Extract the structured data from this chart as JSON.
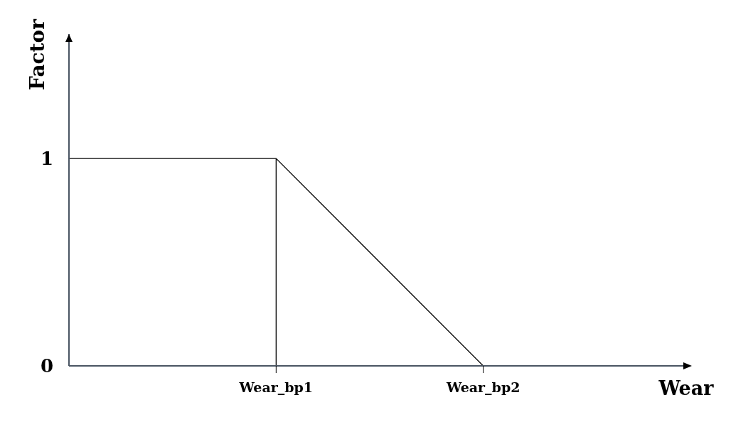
{
  "chart_data": {
    "type": "line",
    "xlabel": "Wear",
    "ylabel": "Factor",
    "categories": [
      null,
      "Wear_bp1",
      "Wear_bp2",
      null
    ],
    "series": [
      {
        "color": "#000000",
        "values": [
          1,
          1,
          0,
          null
        ]
      },
      {
        "type": "line",
        "x": [
          "Wear_bp1",
          "Wear_bp1"
        ],
        "values": [
          0,
          1
        ],
        "color": "#000000"
      }
    ],
    "ylim": [
      0,
      1.6
    ],
    "yticks": [
      0,
      1
    ],
    "marker": "none"
  }
}
